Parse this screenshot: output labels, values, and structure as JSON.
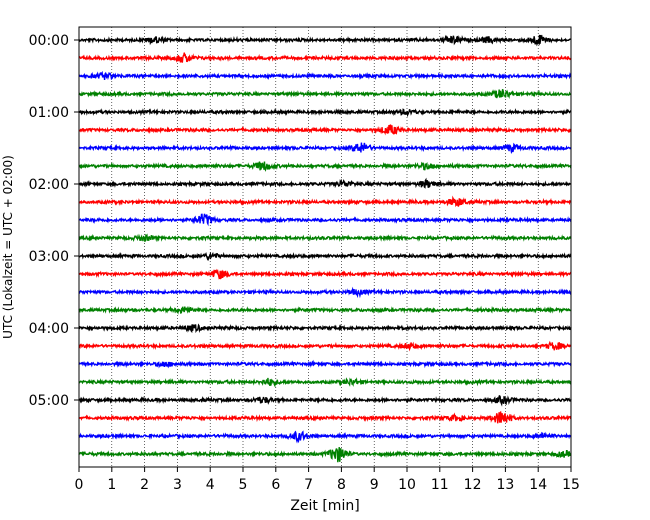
{
  "chart_data": {
    "type": "line",
    "xlabel": "Zeit  [min]",
    "ylabel": "UTC (Lokalzeit = UTC + 02:00)",
    "xlim": [
      0,
      15
    ],
    "x_ticks": [
      "0",
      "1",
      "2",
      "3",
      "4",
      "5",
      "6",
      "7",
      "8",
      "9",
      "10",
      "11",
      "12",
      "13",
      "14",
      "15"
    ],
    "y_ticks": [
      "00:00",
      "01:00",
      "02:00",
      "03:00",
      "04:00",
      "05:00"
    ],
    "y_tick_rows": [
      0,
      4,
      8,
      12,
      16,
      20
    ],
    "grid_x": "dotted",
    "trace_count": 24,
    "trace_interval_minutes": 15,
    "colors": [
      "#000000",
      "#ff0000",
      "#0000ff",
      "#008000"
    ],
    "events": [
      {
        "trace": 0,
        "minute": 2.3,
        "amp": 0.35
      },
      {
        "trace": 0,
        "minute": 11.4,
        "amp": 0.45
      },
      {
        "trace": 0,
        "minute": 12.5,
        "amp": 0.35
      },
      {
        "trace": 0,
        "minute": 14.0,
        "amp": 0.6
      },
      {
        "trace": 1,
        "minute": 3.2,
        "amp": 0.6
      },
      {
        "trace": 2,
        "minute": 0.8,
        "amp": 0.4
      },
      {
        "trace": 3,
        "minute": 12.9,
        "amp": 0.6
      },
      {
        "trace": 4,
        "minute": 10.0,
        "amp": 0.3
      },
      {
        "trace": 5,
        "minute": 9.5,
        "amp": 0.6
      },
      {
        "trace": 6,
        "minute": 8.6,
        "amp": 0.65
      },
      {
        "trace": 6,
        "minute": 13.2,
        "amp": 0.45
      },
      {
        "trace": 7,
        "minute": 5.6,
        "amp": 0.55
      },
      {
        "trace": 7,
        "minute": 10.6,
        "amp": 0.4
      },
      {
        "trace": 8,
        "minute": 8.1,
        "amp": 0.35
      },
      {
        "trace": 8,
        "minute": 10.6,
        "amp": 0.45
      },
      {
        "trace": 9,
        "minute": 11.5,
        "amp": 0.55
      },
      {
        "trace": 10,
        "minute": 3.8,
        "amp": 0.7
      },
      {
        "trace": 11,
        "minute": 2.0,
        "amp": 0.3
      },
      {
        "trace": 12,
        "minute": 4.0,
        "amp": 0.3
      },
      {
        "trace": 13,
        "minute": 4.3,
        "amp": 0.5
      },
      {
        "trace": 14,
        "minute": 8.5,
        "amp": 0.35
      },
      {
        "trace": 15,
        "minute": 3.2,
        "amp": 0.35
      },
      {
        "trace": 16,
        "minute": 3.5,
        "amp": 0.4
      },
      {
        "trace": 17,
        "minute": 10.1,
        "amp": 0.35
      },
      {
        "trace": 17,
        "minute": 14.5,
        "amp": 0.45
      },
      {
        "trace": 18,
        "minute": 2.6,
        "amp": 0.3
      },
      {
        "trace": 19,
        "minute": 5.8,
        "amp": 0.45
      },
      {
        "trace": 19,
        "minute": 8.3,
        "amp": 0.3
      },
      {
        "trace": 20,
        "minute": 5.6,
        "amp": 0.35
      },
      {
        "trace": 20,
        "minute": 12.9,
        "amp": 0.4
      },
      {
        "trace": 21,
        "minute": 12.9,
        "amp": 0.9
      },
      {
        "trace": 21,
        "minute": 11.5,
        "amp": 0.35
      },
      {
        "trace": 22,
        "minute": 6.7,
        "amp": 0.6
      },
      {
        "trace": 22,
        "minute": 14.2,
        "amp": 0.3
      },
      {
        "trace": 23,
        "minute": 7.9,
        "amp": 1.0
      },
      {
        "trace": 23,
        "minute": 14.8,
        "amp": 0.3
      }
    ]
  }
}
